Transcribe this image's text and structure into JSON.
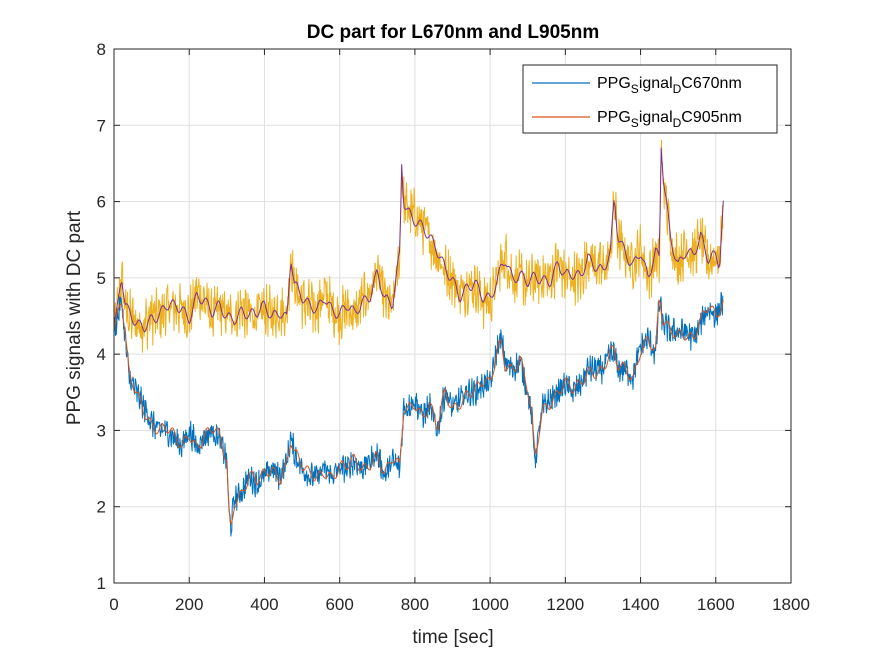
{
  "chart_data": {
    "type": "line",
    "title": "DC part for L670nm and L905nm",
    "xlabel": "time [sec]",
    "ylabel": "PPG signals with DC part",
    "xlim": [
      0,
      1800
    ],
    "ylim": [
      1,
      8
    ],
    "xticks": [
      0,
      200,
      400,
      600,
      800,
      1000,
      1200,
      1400,
      1600,
      1800
    ],
    "yticks": [
      1,
      2,
      3,
      4,
      5,
      6,
      7,
      8
    ],
    "grid": true,
    "legend_position": "top-right",
    "legend": [
      {
        "label_main": "PPG",
        "sub1": "S",
        "mid": "ignal",
        "sub2": "D",
        "tail": "C670nm",
        "color": "#0072BD"
      },
      {
        "label_main": "PPG",
        "sub1": "S",
        "mid": "ignal",
        "sub2": "D",
        "tail": "C905nm",
        "color": "#D95319"
      }
    ],
    "series": [
      {
        "name": "PPG_Signal_DC670nm",
        "color": "#0072BD",
        "filtered_color": "#D95319",
        "x": [
          0,
          10,
          20,
          30,
          40,
          60,
          80,
          100,
          120,
          140,
          160,
          180,
          200,
          220,
          240,
          260,
          280,
          300,
          305,
          310,
          315,
          320,
          340,
          360,
          380,
          400,
          420,
          440,
          460,
          470,
          480,
          500,
          520,
          540,
          560,
          580,
          600,
          620,
          640,
          660,
          680,
          700,
          720,
          740,
          760,
          765,
          770,
          780,
          800,
          820,
          840,
          860,
          880,
          900,
          920,
          940,
          960,
          980,
          1000,
          1020,
          1030,
          1040,
          1060,
          1080,
          1100,
          1110,
          1120,
          1130,
          1140,
          1160,
          1180,
          1200,
          1220,
          1240,
          1260,
          1280,
          1300,
          1320,
          1330,
          1340,
          1360,
          1380,
          1400,
          1420,
          1440,
          1450,
          1460,
          1480,
          1500,
          1520,
          1540,
          1560,
          1580,
          1600,
          1620
        ],
        "values": [
          4.3,
          4.5,
          4.7,
          4.2,
          3.7,
          3.5,
          3.3,
          3.1,
          3.0,
          3.0,
          2.9,
          2.8,
          3.0,
          2.8,
          2.9,
          3.0,
          2.9,
          2.6,
          2.0,
          1.7,
          1.9,
          2.1,
          2.2,
          2.4,
          2.3,
          2.4,
          2.5,
          2.4,
          2.6,
          2.9,
          2.7,
          2.5,
          2.4,
          2.4,
          2.5,
          2.4,
          2.5,
          2.5,
          2.6,
          2.5,
          2.6,
          2.7,
          2.4,
          2.6,
          2.5,
          2.9,
          3.3,
          3.3,
          3.4,
          3.2,
          3.3,
          3.0,
          3.5,
          3.3,
          3.4,
          3.5,
          3.5,
          3.6,
          3.6,
          4.1,
          4.2,
          3.9,
          3.8,
          3.9,
          3.5,
          3.2,
          2.6,
          3.0,
          3.3,
          3.4,
          3.5,
          3.6,
          3.5,
          3.6,
          3.8,
          3.8,
          3.8,
          4.0,
          4.0,
          3.8,
          3.8,
          3.7,
          4.1,
          4.2,
          4.0,
          4.7,
          4.4,
          4.3,
          4.3,
          4.3,
          4.2,
          4.4,
          4.6,
          4.5,
          4.7
        ]
      },
      {
        "name": "PPG_Signal_DC905nm",
        "color": "#EDB120",
        "filtered_color": "#7E2F8E",
        "x": [
          0,
          10,
          20,
          30,
          40,
          60,
          80,
          100,
          120,
          140,
          160,
          180,
          200,
          220,
          240,
          260,
          280,
          300,
          320,
          340,
          360,
          380,
          400,
          420,
          440,
          460,
          470,
          480,
          500,
          520,
          540,
          560,
          580,
          600,
          620,
          640,
          660,
          680,
          700,
          720,
          740,
          760,
          765,
          770,
          780,
          800,
          820,
          840,
          860,
          880,
          900,
          920,
          940,
          960,
          980,
          1000,
          1020,
          1030,
          1040,
          1060,
          1080,
          1100,
          1120,
          1140,
          1160,
          1180,
          1200,
          1220,
          1240,
          1260,
          1280,
          1300,
          1320,
          1330,
          1340,
          1360,
          1380,
          1400,
          1420,
          1440,
          1450,
          1455,
          1460,
          1480,
          1500,
          1520,
          1540,
          1560,
          1580,
          1600,
          1610,
          1620
        ],
        "values": [
          4.3,
          4.6,
          5.0,
          4.6,
          4.5,
          4.4,
          4.4,
          4.5,
          4.5,
          4.6,
          4.6,
          4.6,
          4.5,
          4.8,
          4.7,
          4.5,
          4.6,
          4.5,
          4.5,
          4.6,
          4.5,
          4.5,
          4.6,
          4.5,
          4.6,
          4.5,
          5.3,
          4.9,
          4.7,
          4.6,
          4.6,
          4.8,
          4.6,
          4.5,
          4.6,
          4.5,
          4.7,
          4.8,
          5.1,
          4.7,
          4.6,
          5.3,
          6.5,
          6.0,
          5.9,
          5.8,
          5.7,
          5.5,
          5.3,
          5.1,
          5.0,
          4.8,
          4.9,
          4.9,
          4.7,
          4.7,
          5.0,
          5.2,
          5.3,
          5.0,
          5.0,
          4.9,
          5.0,
          5.0,
          5.0,
          5.2,
          5.0,
          5.0,
          5.0,
          5.3,
          5.2,
          5.1,
          5.3,
          6.0,
          5.5,
          5.3,
          5.2,
          5.4,
          5.0,
          5.3,
          5.2,
          6.7,
          6.3,
          5.5,
          5.2,
          5.4,
          5.3,
          5.5,
          5.2,
          5.3,
          5.2,
          6.0
        ]
      }
    ]
  }
}
